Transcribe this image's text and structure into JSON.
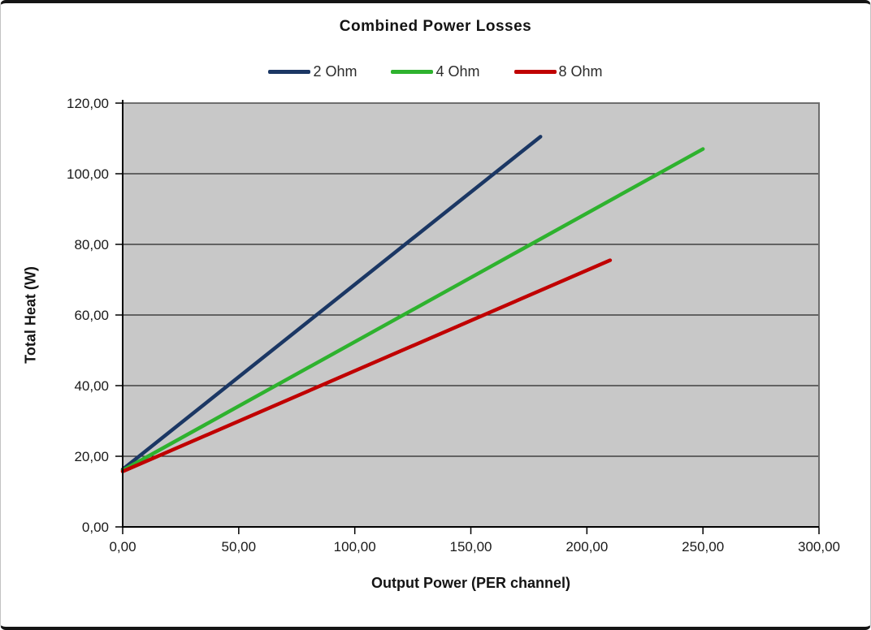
{
  "chart_data": {
    "type": "line",
    "title": "Combined Power Losses",
    "xlabel": "Output Power (PER channel)",
    "ylabel": "Total Heat (W)",
    "xlim": [
      0,
      300
    ],
    "ylim": [
      0,
      120
    ],
    "x_ticks": [
      0,
      50,
      100,
      150,
      200,
      250,
      300
    ],
    "x_tick_labels": [
      "0,00",
      "50,00",
      "100,00",
      "150,00",
      "200,00",
      "250,00",
      "300,00"
    ],
    "y_ticks": [
      0,
      20,
      40,
      60,
      80,
      100,
      120
    ],
    "y_tick_labels": [
      "0,00",
      "20,00",
      "40,00",
      "60,00",
      "80,00",
      "100,00",
      "120,00"
    ],
    "grid": "horizontal",
    "legend_position": "top",
    "colors": {
      "plot_background": "#C8C8C8",
      "gridline": "#262626",
      "plot_border": "#6E6E6E",
      "axis": "#000000",
      "text": "#1A1A1A"
    },
    "series": [
      {
        "name": "2 Ohm",
        "color": "#1B3764",
        "points": [
          [
            0,
            16.3
          ],
          [
            180,
            110.5
          ]
        ]
      },
      {
        "name": "4 Ohm",
        "color": "#2EB22E",
        "points": [
          [
            0,
            16.0
          ],
          [
            250,
            107.0
          ]
        ]
      },
      {
        "name": "8 Ohm",
        "color": "#C00000",
        "points": [
          [
            0,
            15.7
          ],
          [
            210,
            75.5
          ]
        ]
      }
    ]
  }
}
